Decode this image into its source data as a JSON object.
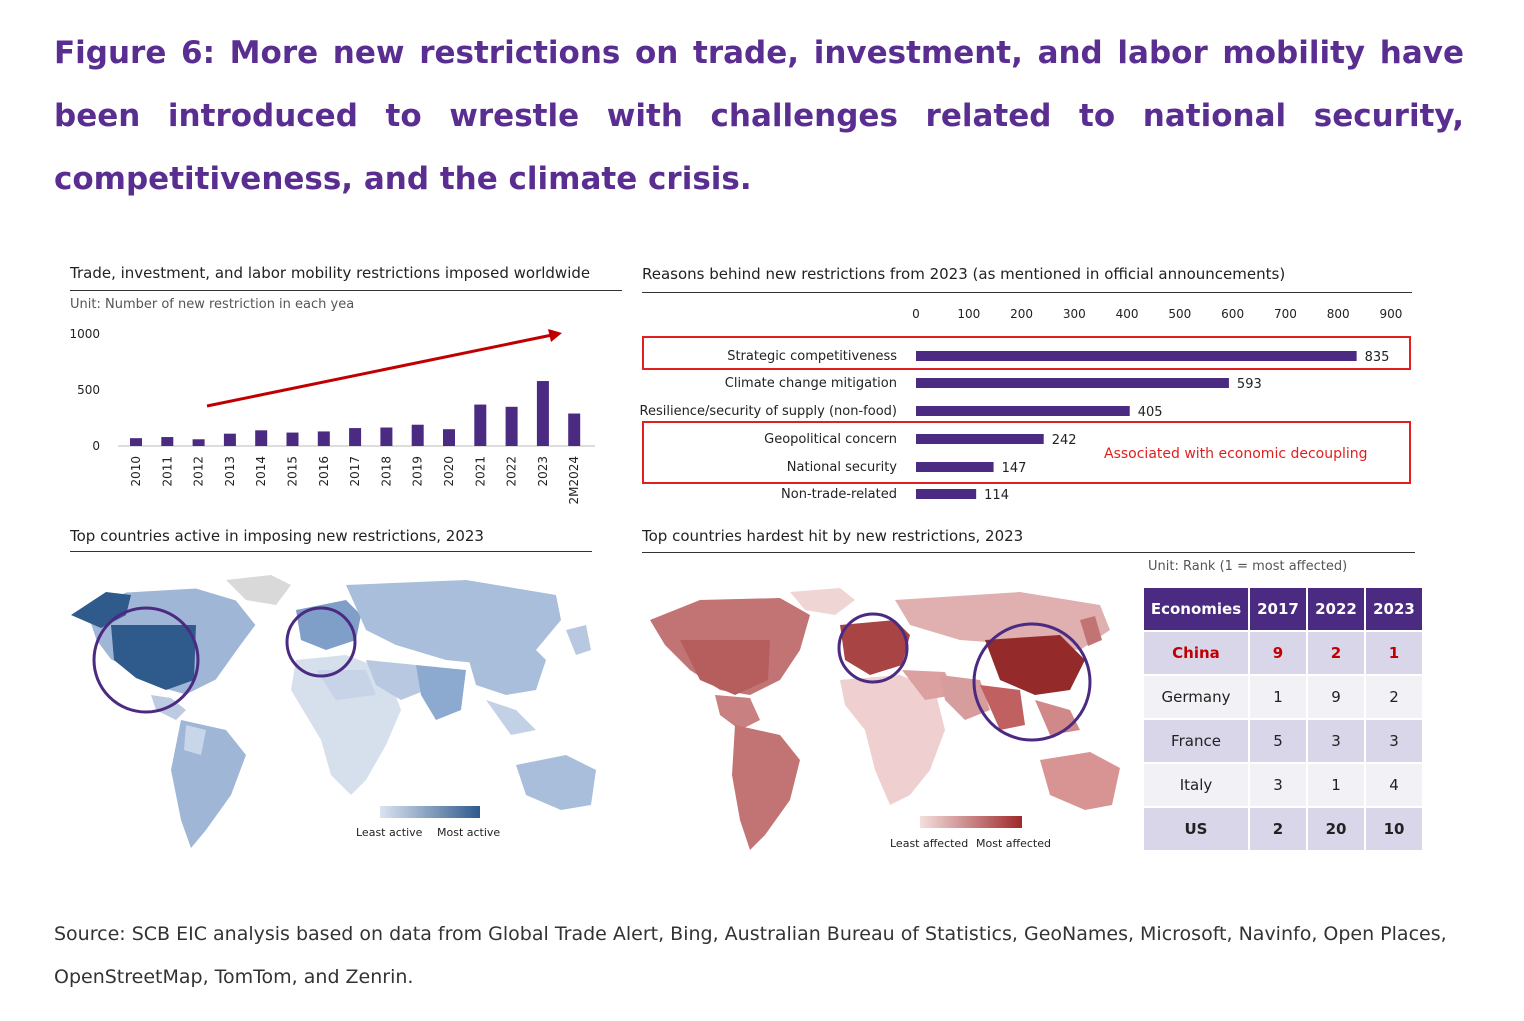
{
  "figure_title": "Figure 6: More new restrictions on trade, investment, and labor mobility have been introduced to wrestle with challenges related to national security, competitiveness, and the climate crisis.",
  "colors": {
    "purple": "#4b2a82",
    "title_purple": "#5a2d91",
    "highlight_red": "#e02020",
    "arrow_red": "#c00000"
  },
  "source": "Source: SCB EIC analysis based on data from Global Trade Alert, Bing, Australian Bureau of Statistics, GeoNames, Microsoft, Navinfo, Open Places, OpenStreetMap, TomTom, and Zenrin.",
  "chart_data": [
    {
      "type": "bar",
      "title": "Trade, investment, and labor mobility restrictions imposed worldwide",
      "subtitle": "Unit: Number of new restriction in each yea",
      "categories": [
        "2010",
        "2011",
        "2012",
        "2013",
        "2014",
        "2015",
        "2016",
        "2017",
        "2018",
        "2019",
        "2020",
        "2021",
        "2022",
        "2023",
        "2M2024"
      ],
      "values": [
        70,
        80,
        60,
        110,
        140,
        120,
        130,
        160,
        165,
        190,
        150,
        370,
        350,
        580,
        290
      ],
      "yticks": [
        "0",
        "500",
        "1000"
      ],
      "ylim": [
        0,
        1000
      ],
      "annotation": "red upward trend arrow"
    },
    {
      "type": "bar",
      "orientation": "horizontal",
      "title": "Reasons behind new restrictions from 2023 (as mentioned in official announcements)",
      "categories": [
        "Strategic competitiveness",
        "Climate change mitigation",
        "Resilience/security of supply (non-food)",
        "Geopolitical concern",
        "National security",
        "Non-trade-related"
      ],
      "values": [
        835,
        593,
        405,
        242,
        147,
        114
      ],
      "value_labels": [
        "835",
        "593",
        "405",
        "242",
        "147",
        "114"
      ],
      "xticks": [
        "0",
        "100",
        "200",
        "300",
        "400",
        "500",
        "600",
        "700",
        "800",
        "900"
      ],
      "xlim": [
        0,
        900
      ],
      "highlight_label": "Associated with economic decoupling"
    },
    {
      "type": "map",
      "title": "Top countries active in imposing new restrictions, 2023",
      "legend": [
        "Least active",
        "Most active"
      ],
      "legend_colors": [
        "#dbe3f0",
        "#2f5a8c"
      ]
    },
    {
      "type": "map",
      "title": "Top countries hardest hit by new restrictions, 2023",
      "legend": [
        "Least affected",
        "Most affected"
      ],
      "legend_colors": [
        "#f4dede",
        "#9e2a2a"
      ]
    },
    {
      "type": "table",
      "unit": "Unit: Rank (1 = most affected)",
      "columns": [
        "Economies",
        "2017",
        "2022",
        "2023"
      ],
      "rows": [
        [
          "China",
          "9",
          "2",
          "1"
        ],
        [
          "Germany",
          "1",
          "9",
          "2"
        ],
        [
          "France",
          "5",
          "3",
          "3"
        ],
        [
          "Italy",
          "3",
          "1",
          "4"
        ],
        [
          "US",
          "2",
          "20",
          "10"
        ]
      ]
    }
  ]
}
